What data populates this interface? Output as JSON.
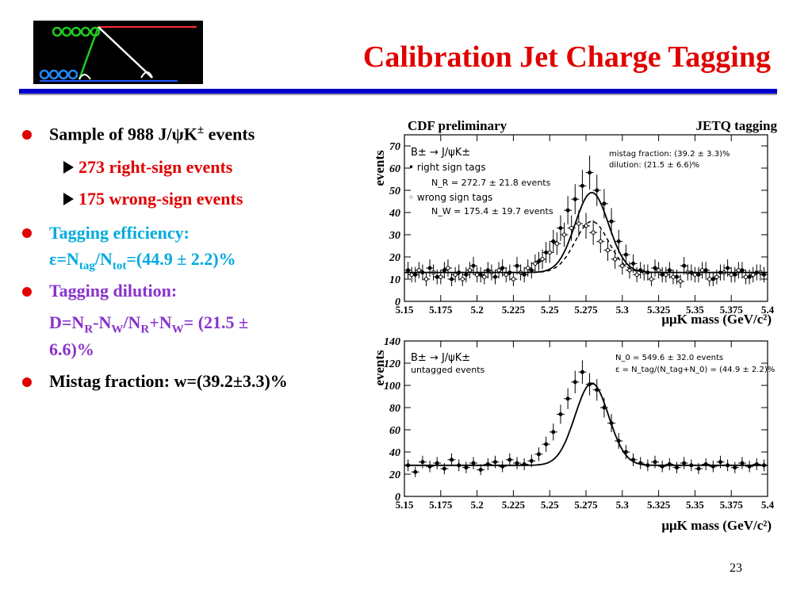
{
  "slide": {
    "title": "Calibration Jet Charge Tagging",
    "page_number": "23"
  },
  "bullets": {
    "b1_text": "Sample of 988 J/ψK",
    "b1_sup": "±",
    "b1_tail": " events",
    "s1": "273 right-sign events",
    "s2": "175 wrong-sign events",
    "b2_line1": "Tagging efficiency:",
    "b2_eps": "ε=N",
    "b2_tag": "tag",
    "b2_slash": "/N",
    "b2_tot": "tot",
    "b2_tail": "=(44.9 ± 2.2)%",
    "b3_line1": "Tagging dilution:",
    "b3_d": "D=N",
    "b3_r1": "R",
    "b3_mid": "-N",
    "b3_w1": "W",
    "b3_mid2": "/N",
    "b3_r2": "R",
    "b3_plus": "+N",
    "b3_w2": "W",
    "b3_tail": "=  (21.5 ±",
    "b3_line3": "6.6)%",
    "b4": "Mistag fraction: w=(39.2±3.3)%"
  },
  "chart_data": [
    {
      "type": "scatter",
      "header_left": "CDF preliminary",
      "header_right": "JETQ tagging",
      "ylabel": "events",
      "xlabel": "μμK mass (GeV/c²)",
      "xlim": [
        5.15,
        5.4
      ],
      "ylim": [
        0,
        75
      ],
      "xticks": [
        "5.15",
        "5.175",
        "5.2",
        "5.225",
        "5.25",
        "5.275",
        "5.3",
        "5.325",
        "5.35",
        "5.375",
        "5.4"
      ],
      "yticks": [
        "0",
        "10",
        "20",
        "30",
        "40",
        "50",
        "60",
        "70"
      ],
      "legend": {
        "title": "B± → J/ψK±",
        "right_sign": "• right sign tags",
        "nr": "N_R = 272.7 ± 21.8 events",
        "wrong_sign": "◦ wrong sign tags",
        "nw": "N_W = 175.4 ± 19.7 events"
      },
      "annotation": {
        "line1": "mistag fraction: (39.2 ± 3.3)%",
        "line2": "dilution: (21.5 ± 6.6)%"
      },
      "fit_right": {
        "peak": 5.279,
        "sigma": 0.0115,
        "amplitude": 36,
        "background": 13
      },
      "fit_wrong": {
        "peak": 5.279,
        "sigma": 0.0115,
        "amplitude": 23,
        "background": 13
      },
      "series": [
        {
          "name": "right sign tags",
          "x": [
            5.1525,
            5.1575,
            5.1625,
            5.1675,
            5.1725,
            5.1775,
            5.1825,
            5.1875,
            5.1925,
            5.1975,
            5.2025,
            5.2075,
            5.2125,
            5.2175,
            5.2225,
            5.2275,
            5.2325,
            5.2375,
            5.2425,
            5.2475,
            5.2525,
            5.2575,
            5.2625,
            5.2675,
            5.2725,
            5.2775,
            5.2825,
            5.2875,
            5.2925,
            5.2975,
            5.3025,
            5.3075,
            5.3125,
            5.3175,
            5.3225,
            5.3275,
            5.3325,
            5.3375,
            5.3425,
            5.3475,
            5.3525,
            5.3575,
            5.3625,
            5.3675,
            5.3725,
            5.3775,
            5.3825,
            5.3875,
            5.3925,
            5.3975
          ],
          "y": [
            14,
            12,
            13,
            15,
            11,
            14,
            10,
            13,
            12,
            16,
            12,
            14,
            11,
            15,
            13,
            16,
            12,
            14,
            18,
            22,
            27,
            33,
            41,
            46,
            52,
            58,
            50,
            44,
            36,
            27,
            21,
            17,
            14,
            13,
            15,
            12,
            14,
            11,
            16,
            13,
            12,
            14,
            10,
            13,
            15,
            12,
            14,
            11,
            13,
            12
          ]
        },
        {
          "name": "wrong sign tags",
          "x": [
            5.155,
            5.16,
            5.165,
            5.17,
            5.175,
            5.18,
            5.185,
            5.19,
            5.195,
            5.2,
            5.205,
            5.21,
            5.215,
            5.22,
            5.225,
            5.23,
            5.235,
            5.24,
            5.245,
            5.25,
            5.255,
            5.26,
            5.265,
            5.27,
            5.275,
            5.28,
            5.285,
            5.29,
            5.295,
            5.3,
            5.305,
            5.31,
            5.315,
            5.32,
            5.325,
            5.33,
            5.335,
            5.34,
            5.345,
            5.35,
            5.355,
            5.36,
            5.365,
            5.37,
            5.375,
            5.38,
            5.385,
            5.39,
            5.395
          ],
          "y": [
            12,
            14,
            10,
            13,
            11,
            15,
            12,
            10,
            14,
            12,
            11,
            13,
            14,
            12,
            10,
            13,
            15,
            17,
            19,
            22,
            26,
            30,
            33,
            35,
            34,
            31,
            27,
            23,
            19,
            16,
            14,
            12,
            13,
            10,
            14,
            12,
            11,
            9,
            13,
            12,
            14,
            10,
            11,
            13,
            12,
            14,
            11,
            12,
            13
          ]
        }
      ]
    },
    {
      "type": "scatter",
      "ylabel": "events",
      "xlabel": "μμK mass (GeV/c²)",
      "xlim": [
        5.15,
        5.4
      ],
      "ylim": [
        0,
        140
      ],
      "xticks": [
        "5.15",
        "5.175",
        "5.2",
        "5.225",
        "5.25",
        "5.275",
        "5.3",
        "5.325",
        "5.35",
        "5.375",
        "5.4"
      ],
      "yticks": [
        "0",
        "20",
        "40",
        "60",
        "80",
        "100",
        "120",
        "140"
      ],
      "legend": {
        "title": "B± → J/ψK±",
        "sub": "untagged events"
      },
      "annotation": {
        "line1": "N_0 = 549.6 ± 32.0 events",
        "line2": "ε = N_tag/(N_tag+N_0) = (44.9 ± 2.2)%"
      },
      "fit": {
        "peak": 5.279,
        "sigma": 0.0115,
        "amplitude": 74,
        "background": 28
      },
      "series": [
        {
          "name": "untagged events",
          "x": [
            5.1525,
            5.1575,
            5.1625,
            5.1675,
            5.1725,
            5.1775,
            5.1825,
            5.1875,
            5.1925,
            5.1975,
            5.2025,
            5.2075,
            5.2125,
            5.2175,
            5.2225,
            5.2275,
            5.2325,
            5.2375,
            5.2425,
            5.2475,
            5.2525,
            5.2575,
            5.2625,
            5.2675,
            5.2725,
            5.2775,
            5.2825,
            5.2875,
            5.2925,
            5.2975,
            5.3025,
            5.3075,
            5.3125,
            5.3175,
            5.3225,
            5.3275,
            5.3325,
            5.3375,
            5.3425,
            5.3475,
            5.3525,
            5.3575,
            5.3625,
            5.3675,
            5.3725,
            5.3775,
            5.3825,
            5.3875,
            5.3925,
            5.3975
          ],
          "y": [
            28,
            22,
            31,
            27,
            30,
            25,
            33,
            28,
            26,
            30,
            24,
            29,
            31,
            27,
            33,
            30,
            29,
            32,
            38,
            47,
            58,
            74,
            88,
            103,
            112,
            101,
            96,
            80,
            66,
            50,
            40,
            33,
            30,
            28,
            31,
            27,
            29,
            26,
            30,
            28,
            25,
            29,
            27,
            31,
            28,
            26,
            30,
            27,
            29,
            28
          ]
        }
      ]
    }
  ]
}
